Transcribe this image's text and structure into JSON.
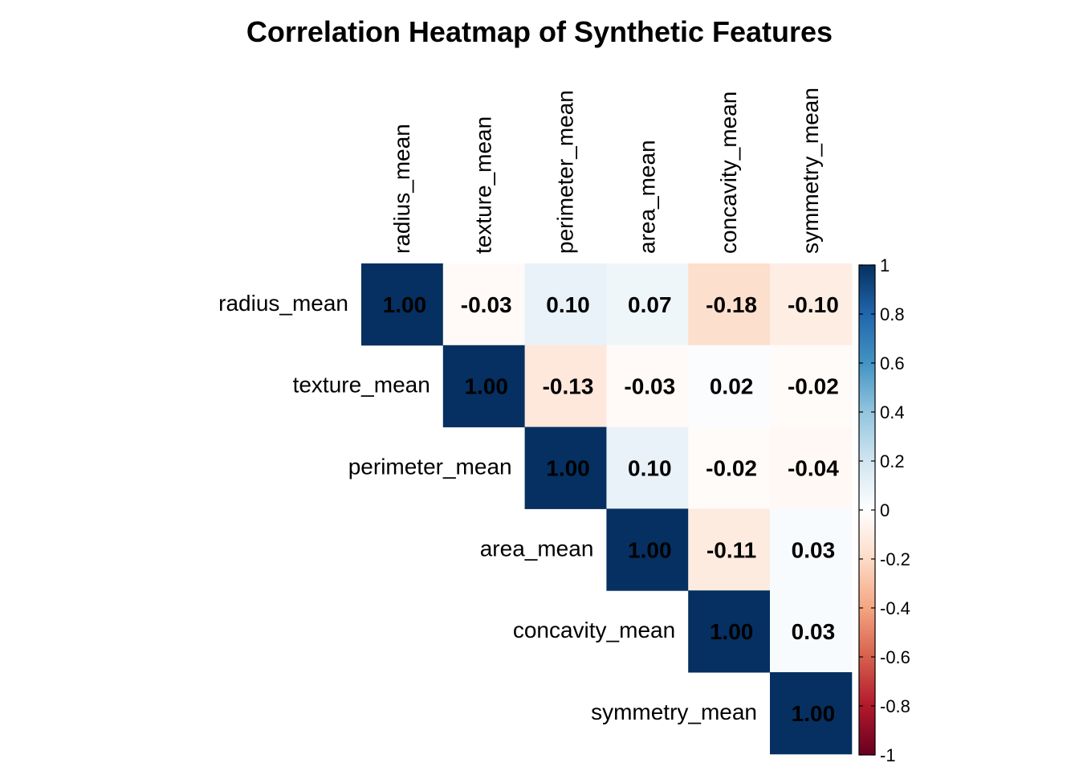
{
  "chart_data": {
    "type": "heatmap",
    "title": "Correlation Heatmap of Synthetic Features",
    "variables": [
      "radius_mean",
      "texture_mean",
      "perimeter_mean",
      "area_mean",
      "concavity_mean",
      "symmetry_mean"
    ],
    "layout": "upper-triangle",
    "value_format": "2 decimals",
    "matrix": [
      [
        1.0,
        -0.03,
        0.1,
        0.07,
        -0.18,
        -0.1
      ],
      [
        -0.03,
        1.0,
        -0.13,
        -0.03,
        0.02,
        -0.02
      ],
      [
        0.1,
        -0.13,
        1.0,
        0.1,
        -0.02,
        -0.04
      ],
      [
        0.07,
        -0.03,
        0.1,
        1.0,
        -0.11,
        0.03
      ],
      [
        -0.18,
        0.02,
        -0.02,
        -0.11,
        1.0,
        0.03
      ],
      [
        -0.1,
        -0.02,
        -0.04,
        0.03,
        0.03,
        1.0
      ]
    ],
    "color_scale": {
      "min": -1,
      "max": 1,
      "ticks": [
        1,
        0.8,
        0.6,
        0.4,
        0.2,
        0,
        -0.2,
        -0.4,
        -0.6,
        -0.8,
        -1
      ],
      "tick_labels": [
        "1",
        "0.8",
        "0.6",
        "0.4",
        "0.2",
        "0",
        "-0.2",
        "-0.4",
        "-0.6",
        "-0.8",
        "-1"
      ],
      "stops": [
        {
          "value": -1,
          "color": "#67001F"
        },
        {
          "value": -0.8,
          "color": "#B2182B"
        },
        {
          "value": -0.6,
          "color": "#D6604D"
        },
        {
          "value": -0.4,
          "color": "#F4A582"
        },
        {
          "value": -0.2,
          "color": "#FDDBC7"
        },
        {
          "value": 0,
          "color": "#FFFFFF"
        },
        {
          "value": 0.2,
          "color": "#D1E5F0"
        },
        {
          "value": 0.4,
          "color": "#92C5DE"
        },
        {
          "value": 0.6,
          "color": "#4393C3"
        },
        {
          "value": 0.8,
          "color": "#2166AC"
        },
        {
          "value": 1,
          "color": "#053061"
        }
      ]
    },
    "legend_position": "right",
    "grid": false
  }
}
